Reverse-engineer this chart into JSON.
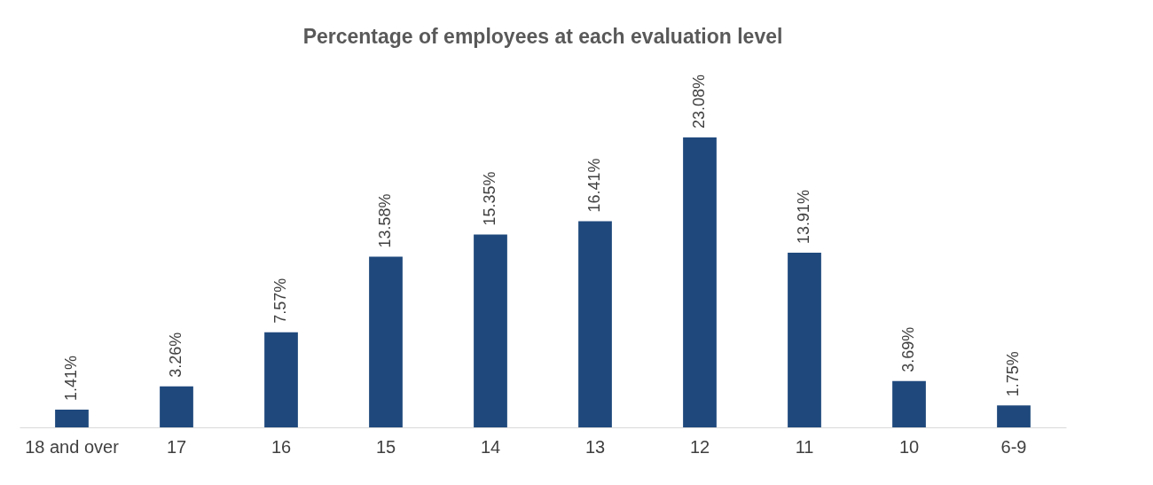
{
  "chart_data": {
    "type": "bar",
    "title": "Percentage of employees at each evaluation level",
    "categories": [
      "18 and over",
      "17",
      "16",
      "15",
      "14",
      "13",
      "12",
      "11",
      "10",
      "6-9"
    ],
    "values": [
      1.41,
      3.26,
      7.57,
      13.58,
      15.35,
      16.41,
      23.08,
      13.91,
      3.69,
      1.75
    ],
    "value_labels": [
      "1.41%",
      "3.26%",
      "7.57%",
      "13.58%",
      "15.35%",
      "16.41%",
      "23.08%",
      "13.91%",
      "3.69%",
      "1.75%"
    ],
    "color": "#1f497d",
    "tick_labels": "x",
    "grid": false
  }
}
